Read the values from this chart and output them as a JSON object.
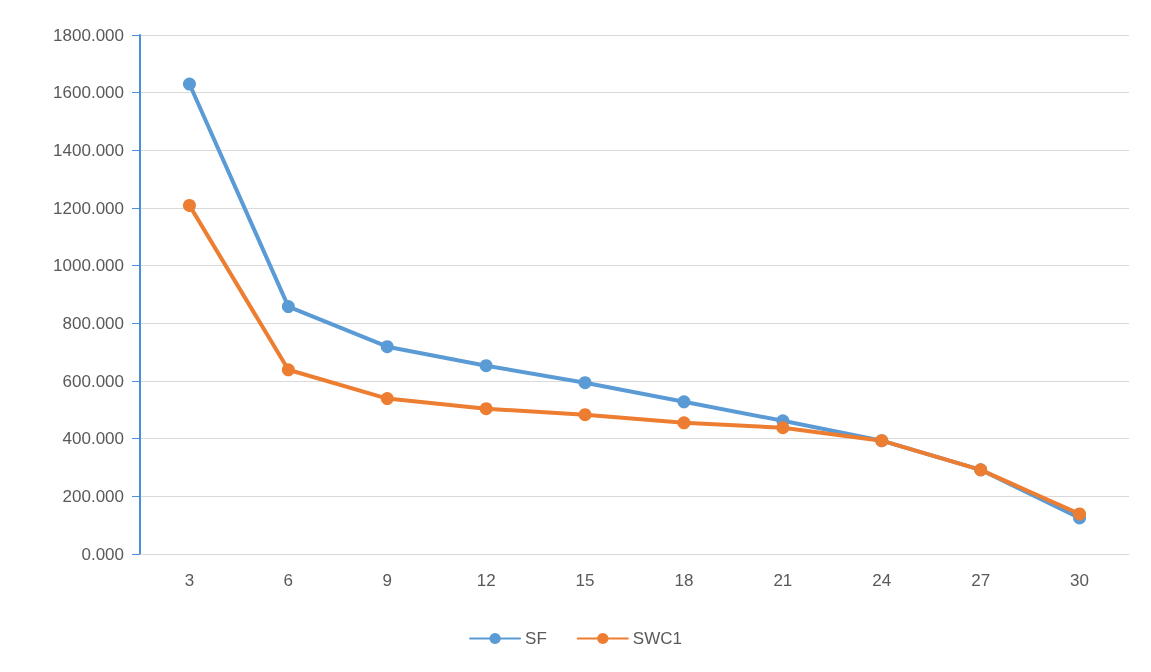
{
  "chart_data": {
    "type": "line",
    "categories": [
      "3",
      "6",
      "9",
      "12",
      "15",
      "18",
      "21",
      "24",
      "27",
      "30"
    ],
    "series": [
      {
        "name": "SF",
        "color": "#5b9bd5",
        "values": [
          1630,
          858,
          719,
          653,
          594,
          528,
          462,
          393,
          292,
          125
        ]
      },
      {
        "name": "SWC1",
        "color": "#ed7d31",
        "values": [
          1209,
          639,
          539,
          504,
          483,
          455,
          438,
          393,
          292,
          139
        ]
      }
    ],
    "ylim": [
      0,
      1800
    ],
    "yticks": [
      {
        "value": 0,
        "label": "0.000"
      },
      {
        "value": 200,
        "label": "200.000"
      },
      {
        "value": 400,
        "label": "400.000"
      },
      {
        "value": 600,
        "label": "600.000"
      },
      {
        "value": 800,
        "label": "800.000"
      },
      {
        "value": 1000,
        "label": "1000.000"
      },
      {
        "value": 1200,
        "label": "1200.000"
      },
      {
        "value": 1400,
        "label": "1400.000"
      },
      {
        "value": 1600,
        "label": "1600.000"
      },
      {
        "value": 1800,
        "label": "1800.000"
      }
    ],
    "grid": "y",
    "legend": "bottom",
    "marker": "circle",
    "line_style": "solid"
  }
}
